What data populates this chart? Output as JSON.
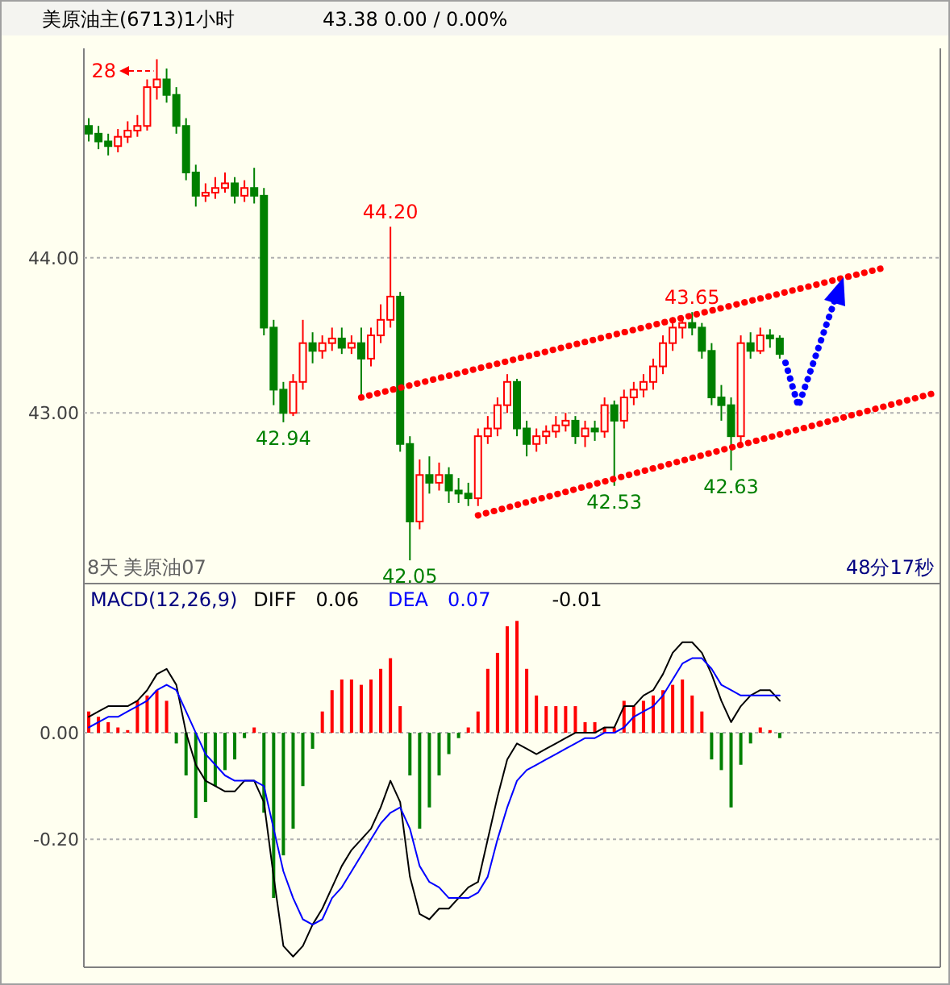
{
  "chart_data": [
    {
      "type": "candlestick",
      "title": "美原油主(6713)1小时",
      "subtitle": "43.38    0.00 / 0.00%",
      "categories": [
        null,
        null,
        null,
        null,
        null,
        null,
        null,
        null,
        null,
        null,
        null,
        null,
        null,
        null,
        null,
        null,
        null,
        null,
        null,
        null,
        null,
        null,
        null,
        null,
        null,
        null,
        null,
        null,
        null,
        null,
        null,
        null,
        null,
        null,
        null,
        null,
        null,
        null,
        null,
        null,
        null,
        null,
        null,
        null,
        null,
        null,
        null,
        null,
        null,
        null,
        null,
        null,
        null,
        null,
        null,
        null,
        null,
        null,
        null,
        null,
        null,
        null,
        null,
        null,
        null,
        null,
        null,
        null,
        null,
        null,
        null,
        null,
        null,
        null,
        null,
        null,
        null,
        null,
        null,
        null,
        null,
        null,
        null,
        null,
        null,
        null,
        null,
        null
      ],
      "ohlc": [
        [
          44.85,
          44.9,
          44.75,
          44.8
        ],
        [
          44.8,
          44.85,
          44.7,
          44.75
        ],
        [
          44.75,
          44.8,
          44.66,
          44.72
        ],
        [
          44.72,
          44.83,
          44.68,
          44.78
        ],
        [
          44.78,
          44.88,
          44.74,
          44.82
        ],
        [
          44.82,
          44.92,
          44.78,
          44.85
        ],
        [
          44.85,
          45.15,
          44.82,
          45.1
        ],
        [
          45.1,
          45.28,
          45.02,
          45.15
        ],
        [
          45.15,
          45.22,
          45.0,
          45.05
        ],
        [
          45.05,
          45.1,
          44.8,
          44.85
        ],
        [
          44.85,
          44.9,
          44.5,
          44.55
        ],
        [
          44.55,
          44.6,
          44.33,
          44.4
        ],
        [
          44.4,
          44.48,
          44.36,
          44.42
        ],
        [
          44.42,
          44.52,
          44.38,
          44.45
        ],
        [
          44.45,
          44.55,
          44.42,
          44.48
        ],
        [
          44.48,
          44.52,
          44.35,
          44.4
        ],
        [
          44.4,
          44.5,
          44.36,
          44.45
        ],
        [
          44.45,
          44.58,
          44.35,
          44.4
        ],
        [
          44.4,
          44.45,
          43.5,
          43.55
        ],
        [
          43.55,
          43.6,
          43.05,
          43.15
        ],
        [
          43.15,
          43.2,
          42.94,
          43.0
        ],
        [
          43.0,
          43.25,
          42.98,
          43.2
        ],
        [
          43.2,
          43.6,
          43.15,
          43.45
        ],
        [
          43.45,
          43.52,
          43.32,
          43.4
        ],
        [
          43.4,
          43.5,
          43.35,
          43.45
        ],
        [
          43.45,
          43.55,
          43.4,
          43.48
        ],
        [
          43.48,
          43.55,
          43.38,
          43.42
        ],
        [
          43.42,
          43.5,
          43.38,
          43.45
        ],
        [
          43.45,
          43.55,
          43.1,
          43.35
        ],
        [
          43.35,
          43.55,
          43.3,
          43.5
        ],
        [
          43.5,
          43.7,
          43.45,
          43.6
        ],
        [
          43.6,
          44.2,
          43.55,
          43.75
        ],
        [
          43.75,
          43.78,
          42.75,
          42.8
        ],
        [
          42.8,
          42.85,
          42.05,
          42.3
        ],
        [
          42.3,
          42.7,
          42.25,
          42.6
        ],
        [
          42.6,
          42.72,
          42.48,
          42.55
        ],
        [
          42.55,
          42.68,
          42.5,
          42.6
        ],
        [
          42.6,
          42.65,
          42.42,
          42.5
        ],
        [
          42.5,
          42.58,
          42.42,
          42.48
        ],
        [
          42.48,
          42.55,
          42.4,
          42.45
        ],
        [
          42.45,
          42.9,
          42.4,
          42.85
        ],
        [
          42.85,
          42.98,
          42.8,
          42.9
        ],
        [
          42.9,
          43.1,
          42.85,
          43.05
        ],
        [
          43.05,
          43.25,
          43.0,
          43.2
        ],
        [
          43.2,
          43.22,
          42.85,
          42.9
        ],
        [
          42.9,
          42.95,
          42.72,
          42.8
        ],
        [
          42.8,
          42.9,
          42.75,
          42.85
        ],
        [
          42.85,
          42.92,
          42.8,
          42.88
        ],
        [
          42.88,
          42.98,
          42.84,
          42.92
        ],
        [
          42.92,
          43.0,
          42.88,
          42.95
        ],
        [
          42.95,
          42.98,
          42.8,
          42.85
        ],
        [
          42.85,
          42.95,
          42.78,
          42.9
        ],
        [
          42.9,
          42.95,
          42.82,
          42.88
        ],
        [
          42.88,
          43.1,
          42.84,
          43.05
        ],
        [
          43.05,
          43.08,
          42.53,
          42.95
        ],
        [
          42.95,
          43.15,
          42.9,
          43.1
        ],
        [
          43.1,
          43.2,
          43.05,
          43.15
        ],
        [
          43.15,
          43.25,
          43.1,
          43.2
        ],
        [
          43.2,
          43.35,
          43.15,
          43.3
        ],
        [
          43.3,
          43.5,
          43.25,
          43.45
        ],
        [
          43.45,
          43.6,
          43.4,
          43.55
        ],
        [
          43.55,
          43.62,
          43.48,
          43.58
        ],
        [
          43.58,
          43.65,
          43.5,
          43.55
        ],
        [
          43.55,
          43.58,
          43.35,
          43.4
        ],
        [
          43.4,
          43.45,
          43.05,
          43.1
        ],
        [
          43.1,
          43.18,
          42.95,
          43.05
        ],
        [
          43.05,
          43.1,
          42.63,
          42.85
        ],
        [
          42.85,
          43.5,
          42.8,
          43.45
        ],
        [
          43.45,
          43.52,
          43.35,
          43.4
        ],
        [
          43.4,
          43.55,
          43.38,
          43.5
        ],
        [
          43.5,
          43.54,
          43.42,
          43.48
        ],
        [
          43.48,
          43.5,
          43.35,
          43.38
        ],
        null,
        null,
        null,
        null,
        null,
        null,
        null,
        null,
        null,
        null,
        null,
        null,
        null,
        null,
        null,
        null
      ],
      "series": [
        {
          "type": "line",
          "color": "#ff0000",
          "line_style": "dotted",
          "values": [
            null,
            null,
            null,
            null,
            null,
            null,
            null,
            null,
            null,
            null,
            null,
            null,
            null,
            null,
            null,
            null,
            null,
            null,
            null,
            null,
            null,
            null,
            null,
            null,
            null,
            null,
            null,
            null,
            43.1,
            null,
            null,
            null,
            null,
            null,
            null,
            null,
            null,
            null,
            null,
            null,
            null,
            null,
            null,
            null,
            null,
            null,
            null,
            null,
            null,
            null,
            null,
            null,
            null,
            null,
            null,
            null,
            null,
            null,
            null,
            null,
            null,
            null,
            null,
            null,
            null,
            null,
            null,
            null,
            null,
            null,
            null,
            null,
            null,
            null,
            null,
            null,
            null,
            null,
            null,
            null,
            null,
            null,
            43.94,
            null,
            null,
            null,
            null,
            null
          ]
        },
        {
          "type": "line",
          "color": "#ff0000",
          "line_style": "dotted",
          "values": [
            null,
            null,
            null,
            null,
            null,
            null,
            null,
            null,
            null,
            null,
            null,
            null,
            null,
            null,
            null,
            null,
            null,
            null,
            null,
            null,
            null,
            null,
            null,
            null,
            null,
            null,
            null,
            null,
            null,
            null,
            null,
            null,
            null,
            null,
            null,
            null,
            null,
            null,
            null,
            null,
            42.34,
            null,
            null,
            null,
            null,
            null,
            null,
            null,
            null,
            null,
            null,
            null,
            null,
            null,
            null,
            null,
            null,
            null,
            null,
            null,
            null,
            null,
            null,
            null,
            null,
            null,
            null,
            null,
            null,
            null,
            null,
            null,
            null,
            null,
            null,
            null,
            null,
            null,
            null,
            null,
            null,
            null,
            null,
            null,
            null,
            null,
            null,
            43.13
          ]
        }
      ],
      "ylim": [
        41.9,
        45.35
      ],
      "yticks": [
        {
          "value": 44,
          "label": "44.00"
        },
        {
          "value": 43,
          "label": "43.00"
        }
      ],
      "grid": "y",
      "annotations": [
        "28",
        {
          "text": "44.20",
          "y": 44.2
        },
        {
          "text": "42.94",
          "y": 42.94
        },
        {
          "text": "42.05",
          "y": 42.05
        },
        {
          "text": "42.53",
          "y": 42.53
        },
        {
          "text": "43.65",
          "y": 43.65
        },
        {
          "text": "42.63",
          "y": 42.63
        },
        "8天",
        "美原油07",
        "48分17秒"
      ]
    },
    {
      "type": "bar",
      "title": "MACD(12,26,9)",
      "categories": [
        null,
        null,
        null,
        null,
        null,
        null,
        null,
        null,
        null,
        null,
        null,
        null,
        null,
        null,
        null,
        null,
        null,
        null,
        null,
        null,
        null,
        null,
        null,
        null,
        null,
        null,
        null,
        null,
        null,
        null,
        null,
        null,
        null,
        null,
        null,
        null,
        null,
        null,
        null,
        null,
        null,
        null,
        null,
        null,
        null,
        null,
        null,
        null,
        null,
        null,
        null,
        null,
        null,
        null,
        null,
        null,
        null,
        null,
        null,
        null,
        null,
        null,
        null,
        null,
        null,
        null,
        null,
        null,
        null,
        null,
        null,
        null,
        null,
        null,
        null,
        null,
        null,
        null,
        null,
        null,
        null,
        null,
        null,
        null,
        null,
        null,
        null,
        null
      ],
      "series": [
        {
          "type": "bar",
          "colors": [
            "#ff0000",
            "#ff0000",
            "#ff0000",
            "#ff0000",
            "#ff0000",
            "#ff0000",
            "#ff0000",
            "#ff0000",
            "#ff0000",
            "#008000",
            "#008000",
            "#008000",
            "#008000",
            "#008000",
            "#008000",
            "#008000",
            "#008000",
            "#ff0000",
            "#008000",
            "#008000",
            "#008000",
            "#008000",
            "#008000",
            "#008000",
            "#ff0000",
            "#ff0000",
            "#ff0000",
            "#ff0000",
            "#ff0000",
            "#ff0000",
            "#ff0000",
            "#ff0000",
            "#ff0000",
            "#008000",
            "#008000",
            "#008000",
            "#008000",
            "#008000",
            "#008000",
            "#ff0000",
            "#ff0000",
            "#ff0000",
            "#ff0000",
            "#ff0000",
            "#ff0000",
            "#ff0000",
            "#ff0000",
            "#ff0000",
            "#ff0000",
            "#ff0000",
            "#ff0000",
            "#ff0000",
            "#ff0000",
            "#ff0000",
            "#ff0000",
            "#ff0000",
            "#ff0000",
            "#ff0000",
            "#ff0000",
            "#ff0000",
            "#ff0000",
            "#ff0000",
            "#ff0000",
            "#ff0000",
            "#008000",
            "#008000",
            "#008000",
            "#008000",
            "#008000",
            "#ff0000",
            "#ff0000",
            "#008000",
            null,
            null,
            null,
            null,
            null,
            null,
            null,
            null,
            null,
            null,
            null,
            null,
            null,
            null,
            null,
            null
          ],
          "values": [
            0.04,
            0.03,
            0.02,
            0.01,
            0.005,
            0.06,
            0.07,
            0.08,
            0.06,
            -0.02,
            -0.08,
            -0.16,
            -0.13,
            -0.1,
            -0.07,
            -0.05,
            -0.01,
            0.01,
            -0.15,
            -0.31,
            -0.23,
            -0.18,
            -0.1,
            -0.03,
            0.04,
            0.08,
            0.1,
            0.1,
            0.09,
            0.1,
            0.12,
            0.14,
            0.05,
            -0.08,
            -0.18,
            -0.14,
            -0.08,
            -0.04,
            -0.01,
            0.01,
            0.04,
            0.12,
            0.15,
            0.2,
            0.21,
            0.12,
            0.07,
            0.05,
            0.05,
            0.05,
            0.05,
            0.02,
            0.02,
            0.01,
            0.01,
            0.06,
            0.05,
            0.06,
            0.07,
            0.08,
            0.09,
            0.1,
            0.07,
            0.04,
            -0.05,
            -0.07,
            -0.14,
            -0.06,
            -0.02,
            0.01,
            0.005,
            -0.01,
            null,
            null,
            null,
            null,
            null,
            null,
            null,
            null,
            null,
            null,
            null,
            null,
            null,
            null,
            null,
            null
          ]
        },
        {
          "name": "DIFF",
          "type": "line",
          "color": "#000000",
          "values": [
            0.03,
            0.04,
            0.05,
            0.05,
            0.05,
            0.06,
            0.08,
            0.11,
            0.12,
            0.09,
            0.0,
            -0.06,
            -0.09,
            -0.1,
            -0.11,
            -0.11,
            -0.09,
            -0.09,
            -0.13,
            -0.27,
            -0.4,
            -0.42,
            -0.4,
            -0.36,
            -0.33,
            -0.29,
            -0.25,
            -0.22,
            -0.2,
            -0.18,
            -0.14,
            -0.09,
            -0.13,
            -0.27,
            -0.34,
            -0.35,
            -0.33,
            -0.33,
            -0.31,
            -0.29,
            -0.28,
            -0.2,
            -0.12,
            -0.05,
            -0.02,
            -0.03,
            -0.04,
            -0.03,
            -0.02,
            -0.01,
            0.0,
            0.0,
            0.0,
            0.01,
            0.01,
            0.05,
            0.05,
            0.07,
            0.08,
            0.11,
            0.15,
            0.17,
            0.17,
            0.15,
            0.11,
            0.06,
            0.02,
            0.05,
            0.07,
            0.08,
            0.08,
            0.06,
            null,
            null,
            null,
            null,
            null,
            null,
            null,
            null,
            null,
            null,
            null,
            null,
            null,
            null,
            null,
            null
          ]
        },
        {
          "name": "DEA",
          "type": "line",
          "color": "#0000ff",
          "values": [
            0.01,
            0.02,
            0.03,
            0.03,
            0.04,
            0.05,
            0.06,
            0.08,
            0.09,
            0.08,
            0.04,
            0.0,
            -0.04,
            -0.06,
            -0.08,
            -0.09,
            -0.09,
            -0.09,
            -0.1,
            -0.18,
            -0.26,
            -0.31,
            -0.35,
            -0.36,
            -0.35,
            -0.31,
            -0.29,
            -0.26,
            -0.23,
            -0.2,
            -0.17,
            -0.15,
            -0.14,
            -0.18,
            -0.25,
            -0.28,
            -0.29,
            -0.31,
            -0.31,
            -0.31,
            -0.3,
            -0.27,
            -0.2,
            -0.14,
            -0.09,
            -0.07,
            -0.06,
            -0.05,
            -0.04,
            -0.03,
            -0.02,
            -0.01,
            -0.01,
            0.0,
            0.0,
            0.01,
            0.03,
            0.04,
            0.05,
            0.07,
            0.1,
            0.13,
            0.14,
            0.14,
            0.12,
            0.09,
            0.08,
            0.07,
            0.07,
            0.07,
            0.07,
            0.07,
            null,
            null,
            null,
            null,
            null,
            null,
            null,
            null,
            null,
            null,
            null,
            null,
            null,
            null,
            null,
            null
          ]
        }
      ],
      "ylim": [
        -0.44,
        0.28
      ],
      "yticks": [
        {
          "value": 0,
          "label": "0.00"
        },
        {
          "value": -0.2,
          "label": "-0.20"
        }
      ],
      "grid": "y",
      "legend": "top left",
      "annotations": [
        "0.06",
        "0.07",
        "-0.01"
      ]
    }
  ]
}
